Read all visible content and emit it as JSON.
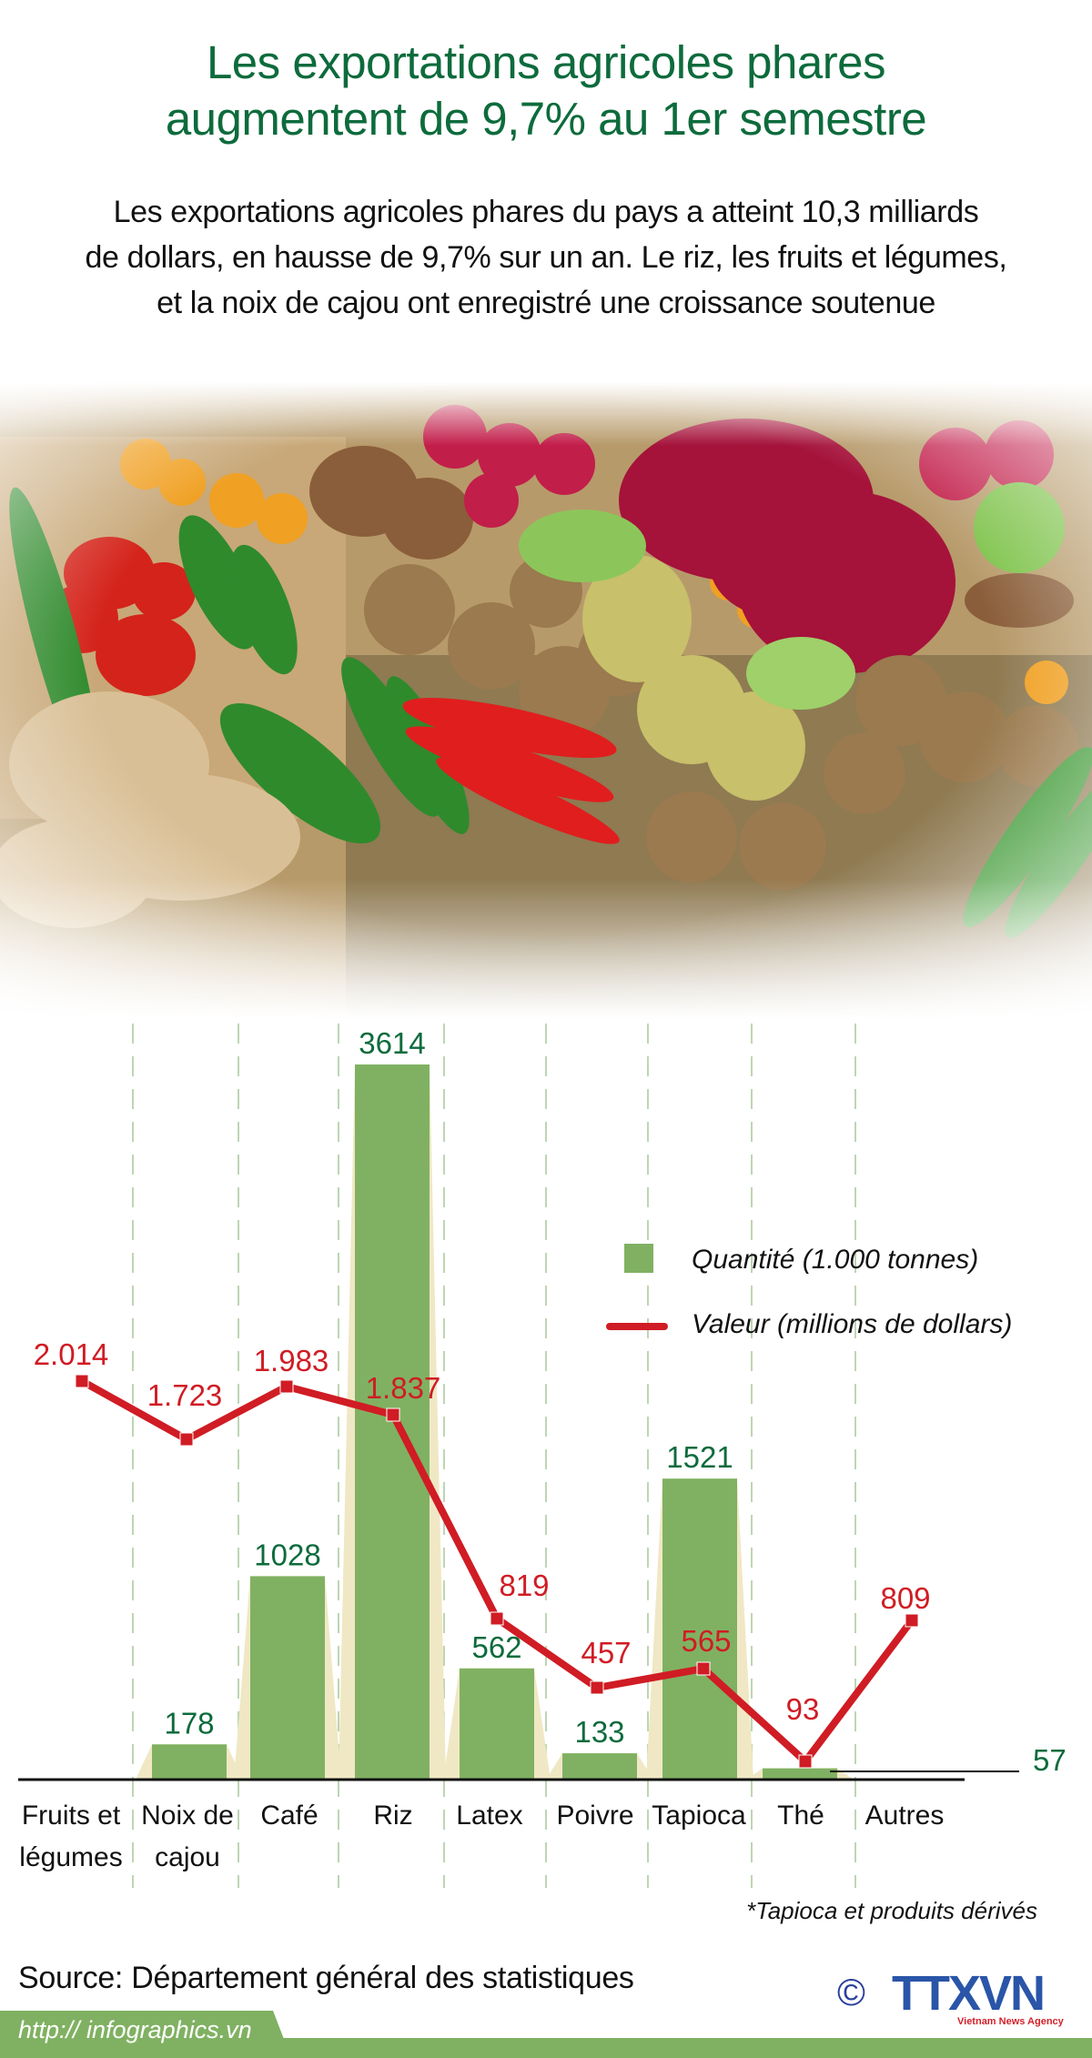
{
  "header": {
    "title_line1": "Les exportations agricoles phares",
    "title_line2": "augmentent de 9,7% au 1er semestre",
    "subtitle_line1": "Les exportations agricoles phares du pays a atteint 10,3 milliards",
    "subtitle_line2": "de dollars, en hausse de 9,7% sur un an. Le riz, les fruits et légumes,",
    "subtitle_line3": "et la noix de cajou ont enregistré une croissance soutenue"
  },
  "colors": {
    "title": "#0d6b3c",
    "bar": "#80b162",
    "bar_shadow": "#f0e8c4",
    "line": "#d01c24",
    "bar_label": "#0d6b3c",
    "line_label": "#d01c24",
    "divider": "#a9c79a",
    "footer": "#80b162"
  },
  "legend": {
    "quantity": "Quantité (1.000 tonnes)",
    "value": "Valeur (millions de dollars)"
  },
  "chart_data": {
    "type": "bar",
    "title": "Les exportations agricoles phares augmentent de 9,7% au 1er semestre",
    "categories": [
      "Fruits et légumes",
      "Noix de cajou",
      "Café",
      "Riz",
      "Latex",
      "Poivre",
      "Tapioca",
      "Thé",
      "Autres"
    ],
    "category_lines": [
      [
        "Fruits et",
        "légumes"
      ],
      [
        "Noix de",
        "cajou"
      ],
      [
        "Café"
      ],
      [
        "Riz"
      ],
      [
        "Latex"
      ],
      [
        "Poivre"
      ],
      [
        "Tapioca"
      ],
      [
        "Thé"
      ],
      [
        "Autres"
      ]
    ],
    "series": [
      {
        "name": "Quantité (1.000 tonnes)",
        "type": "bar",
        "values": [
          null,
          178,
          1028,
          3614,
          562,
          133,
          1521,
          57,
          null
        ],
        "labels": [
          "",
          "178",
          "1028",
          "3614",
          "562",
          "133",
          "1521",
          "57",
          ""
        ]
      },
      {
        "name": "Valeur (millions de dollars)",
        "type": "line",
        "values": [
          2014,
          1723,
          1983,
          1837,
          819,
          457,
          565,
          93,
          809
        ],
        "labels": [
          "2.014",
          "1.723",
          "1.983",
          "1.837",
          "819",
          "457",
          "565",
          "93",
          "809"
        ]
      }
    ],
    "xlabel": "",
    "ylabel": "",
    "grid": "vertical dashed dividers",
    "legend_position": "upper right"
  },
  "footer": {
    "footnote": "*Tapioca et produits dérivés",
    "source": "Source: Département général des statistiques",
    "url": "http:// infographics.vn",
    "logo_copyright": "©",
    "logo_text": "TTXVN",
    "logo_sub": "Vietnam News Agency"
  }
}
